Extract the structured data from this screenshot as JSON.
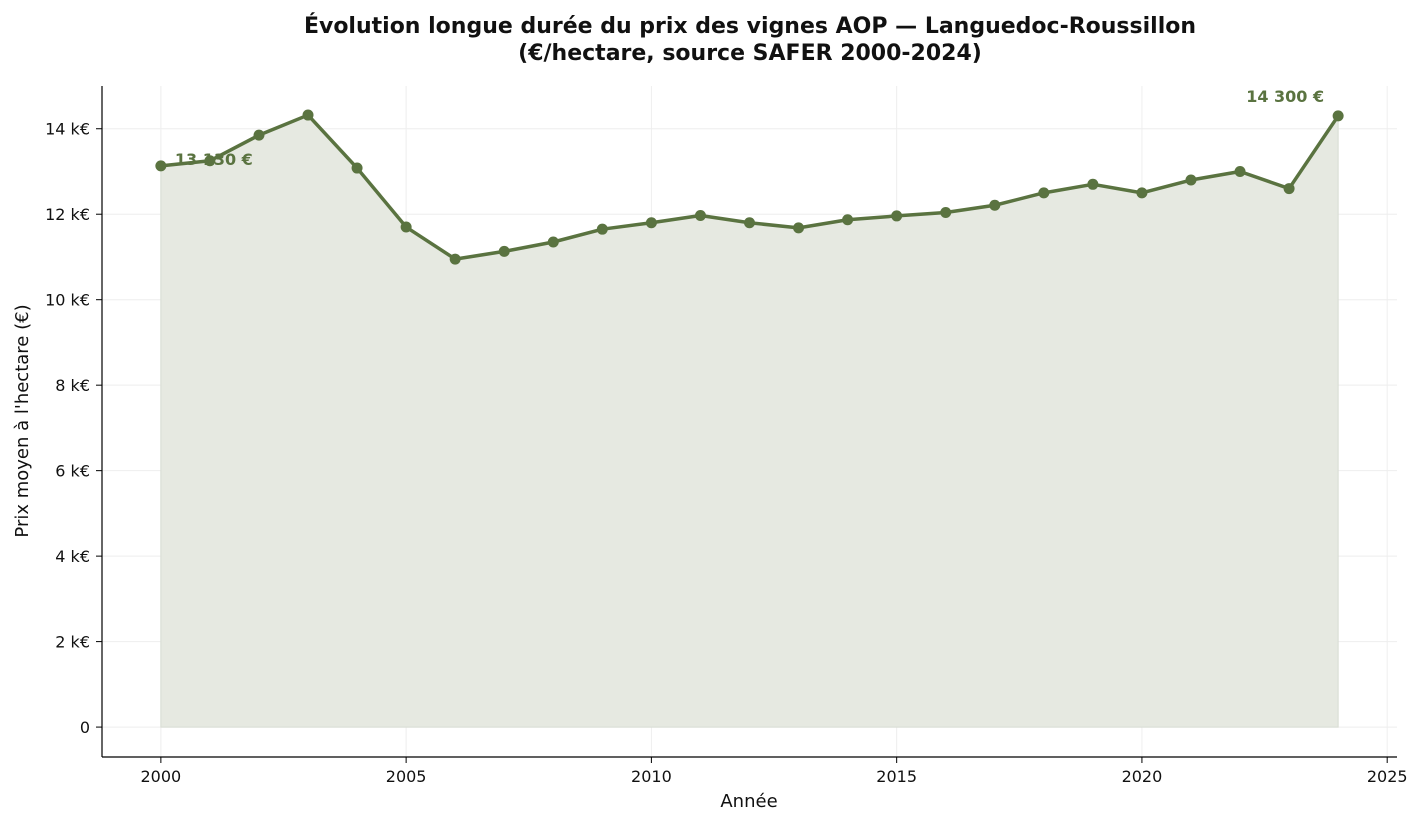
{
  "chart_data": {
    "type": "area",
    "title": "Évolution longue durée du prix des vignes AOP — Languedoc-Roussillon",
    "subtitle": "(€/hectare, source SAFER 2000-2024)",
    "xlabel": "Année",
    "ylabel": "Prix moyen à l'hectare (€)",
    "x": [
      2000,
      2001,
      2002,
      2003,
      2004,
      2005,
      2006,
      2007,
      2008,
      2009,
      2010,
      2011,
      2012,
      2013,
      2014,
      2015,
      2016,
      2017,
      2018,
      2019,
      2020,
      2021,
      2022,
      2023,
      2024
    ],
    "series": [
      {
        "values": [
          13130,
          13250,
          13850,
          14320,
          13080,
          11700,
          10950,
          11130,
          11350,
          11650,
          11800,
          11970,
          11800,
          11680,
          11870,
          11960,
          12040,
          12210,
          12500,
          12700,
          12500,
          12800,
          13000,
          12600,
          14300
        ],
        "color": "#5a7340",
        "fill_color": "#e6e9e1"
      }
    ],
    "xlim": [
      1998.8,
      2025.2
    ],
    "ylim": [
      -700,
      15000
    ],
    "xticks": [
      2000,
      2005,
      2010,
      2015,
      2020,
      2025
    ],
    "xtick_labels": [
      "2000",
      "2005",
      "2010",
      "2015",
      "2020",
      "2025"
    ],
    "yticks": [
      0,
      2000,
      4000,
      6000,
      8000,
      10000,
      12000,
      14000
    ],
    "ytick_labels": [
      "0",
      "2 k€",
      "4 k€",
      "6 k€",
      "8 k€",
      "10 k€",
      "12 k€",
      "14 k€"
    ],
    "annotations": [
      {
        "text": "13 130 €",
        "x": 2000,
        "y": 13130
      },
      {
        "text": "14 300 €",
        "x": 2024,
        "y": 14300
      }
    ],
    "grid": true,
    "legend": "none"
  }
}
